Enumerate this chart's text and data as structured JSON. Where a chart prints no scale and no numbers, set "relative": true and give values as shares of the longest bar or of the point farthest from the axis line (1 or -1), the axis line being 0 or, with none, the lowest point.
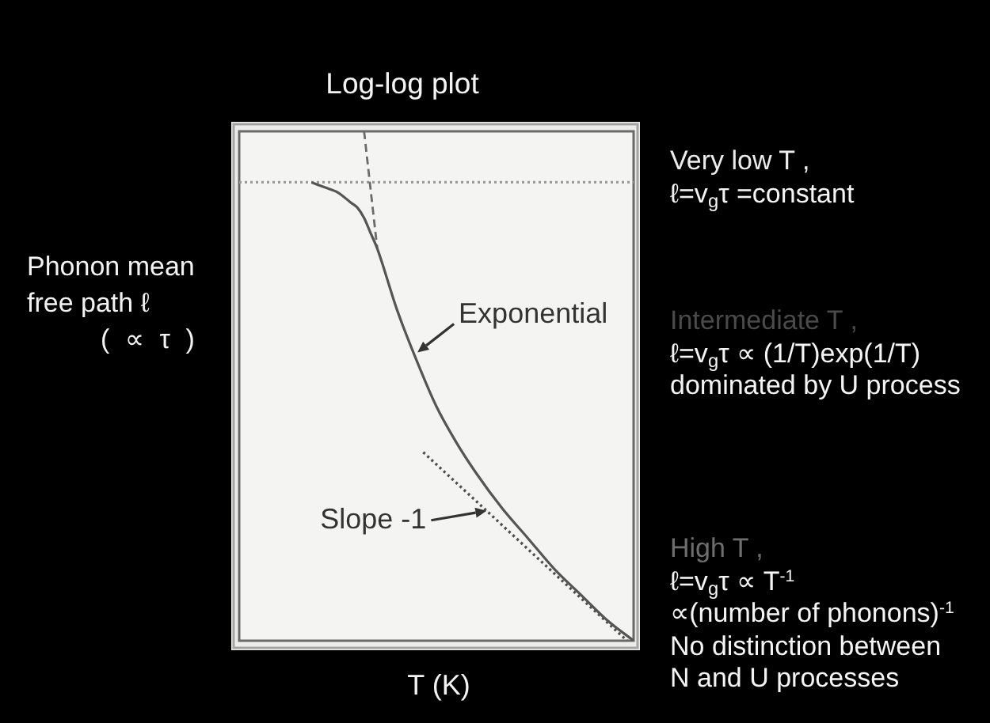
{
  "chart_data": {
    "type": "line",
    "title": "Log-log plot",
    "xlabel": "T (K)",
    "ylabel": "Phonon mean\nfree path ℓ\n( ∝ τ )",
    "relative": true,
    "marker": "none",
    "categories": [
      null,
      null,
      null,
      null,
      null,
      null,
      null,
      null,
      null,
      null,
      null,
      null,
      null,
      null,
      null,
      null,
      null,
      null,
      null,
      null,
      null,
      null,
      null,
      null,
      null,
      null,
      null,
      null,
      null,
      null,
      null,
      null,
      null,
      null,
      null,
      null,
      null,
      null,
      null,
      null,
      null,
      null,
      null,
      null,
      null,
      null,
      null,
      null,
      null,
      null,
      null,
      null,
      null,
      null,
      null,
      null,
      null,
      null,
      null,
      null,
      null
    ],
    "series": [
      {
        "color": "#555555",
        "line_style": "solid",
        "values": [
          null,
          null,
          null,
          null,
          null,
          null,
          null,
          null,
          null,
          null,
          null,
          0.9,
          null,
          0.89,
          null,
          0.88,
          null,
          0.86,
          0.85,
          0.83,
          0.8,
          0.77,
          null,
          null,
          0.65,
          null,
          null,
          0.55,
          null,
          null,
          0.46,
          null,
          null,
          0.39,
          null,
          null,
          0.33,
          null,
          null,
          null,
          0.26,
          null,
          null,
          null,
          0.2,
          null,
          null,
          null,
          0.14,
          null,
          null,
          null,
          0.09,
          null,
          null,
          null,
          0.04,
          null,
          null,
          null,
          0
        ]
      },
      {
        "color": "#6b6b6b",
        "line_style": "dashed",
        "values": [
          null,
          null,
          null,
          null,
          null,
          null,
          null,
          null,
          null,
          null,
          null,
          null,
          null,
          null,
          null,
          null,
          null,
          null,
          null,
          1.0,
          null,
          0.77,
          null,
          null,
          null,
          null,
          null,
          null,
          null,
          null,
          null,
          null,
          null,
          null,
          null,
          null,
          null,
          null,
          null,
          null,
          null,
          null,
          null,
          null,
          null,
          null,
          null,
          null,
          null,
          null,
          null,
          null,
          null,
          null,
          null,
          null,
          null,
          null,
          null,
          null,
          null
        ]
      },
      {
        "color": "#9b9b9b",
        "line_style": "dotted",
        "values": [
          0.9,
          null,
          null,
          null,
          null,
          null,
          null,
          null,
          null,
          null,
          null,
          null,
          null,
          null,
          null,
          null,
          null,
          null,
          null,
          null,
          null,
          null,
          null,
          null,
          null,
          null,
          null,
          null,
          null,
          null,
          null,
          null,
          null,
          null,
          null,
          null,
          null,
          null,
          null,
          null,
          null,
          null,
          null,
          null,
          null,
          null,
          null,
          null,
          null,
          null,
          null,
          null,
          null,
          null,
          null,
          null,
          null,
          null,
          null,
          null,
          0.9
        ]
      },
      {
        "color": "#4d4d4d",
        "line_style": "dotted",
        "values": [
          null,
          null,
          null,
          null,
          null,
          null,
          null,
          null,
          null,
          null,
          null,
          null,
          null,
          null,
          null,
          null,
          null,
          null,
          null,
          null,
          null,
          null,
          null,
          null,
          null,
          null,
          null,
          null,
          0.37,
          null,
          null,
          null,
          null,
          null,
          null,
          null,
          null,
          null,
          null,
          null,
          null,
          null,
          null,
          null,
          null,
          null,
          null,
          null,
          null,
          null,
          null,
          null,
          null,
          null,
          null,
          null,
          null,
          null,
          null,
          0,
          null
        ]
      }
    ],
    "annotations": [
      "Exponential",
      "Slope -1",
      "Very low T ,\nℓ=v$_{g}$τ =constant",
      "Intermediate T ,\nℓ=v$_{g}$τ ∝ (1/T)exp(1/T)\ndominated by U process",
      "High T ,\nℓ=v$_{g}$τ ∝ T$^{-1}$\n∝(number of phonons)$^{-1}$\nNo distinction between\nN and U processes"
    ]
  }
}
